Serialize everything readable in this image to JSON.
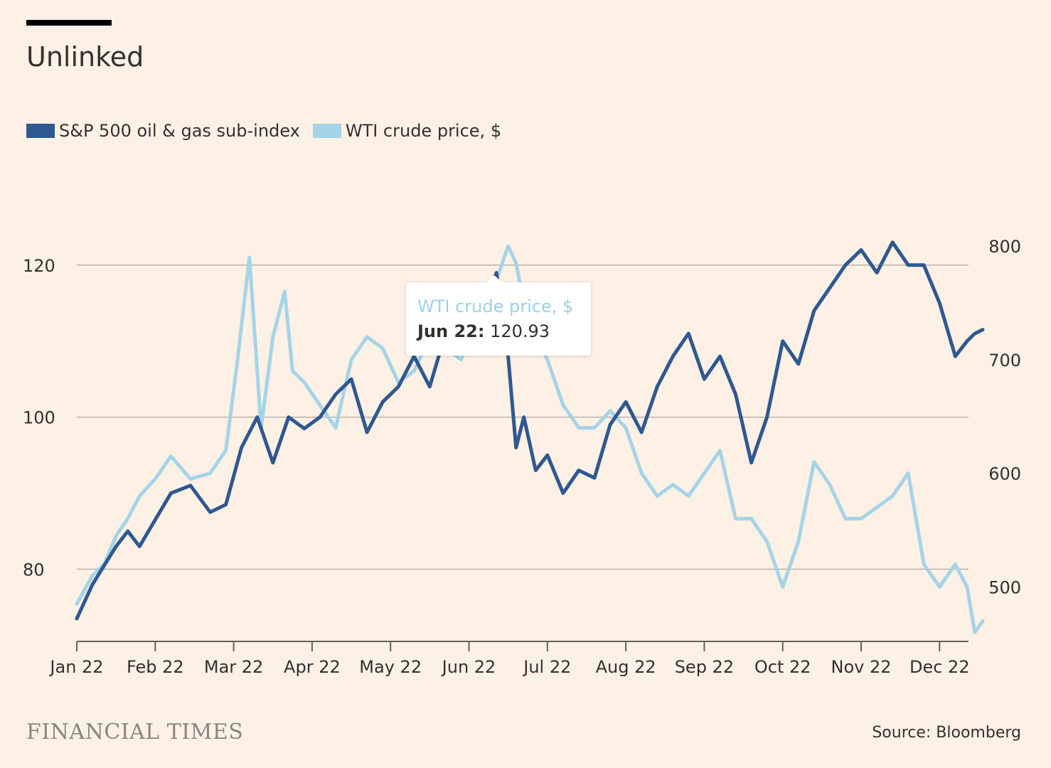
{
  "title": "Unlinked",
  "colors": {
    "background": "#fdf1e5",
    "series_dark": "#2f5891",
    "series_light": "#a5d4e8",
    "grid": "#b9b3ad",
    "text": "#33302e"
  },
  "tooltip": {
    "series": "WTI crude price, $",
    "date": "Jun 22:",
    "value": "120.93"
  },
  "footer": {
    "logo": "FINANCIAL TIMES",
    "source": "Source: Bloomberg"
  },
  "chart_data": {
    "type": "line",
    "x_labels": [
      "Jan 22",
      "Feb 22",
      "Mar 22",
      "Apr 22",
      "May 22",
      "Jun 22",
      "Jul 22",
      "Aug 22",
      "Sep 22",
      "Oct 22",
      "Nov 22",
      "Dec 22"
    ],
    "left_axis": {
      "ticks": [
        "80",
        "100",
        "120"
      ],
      "range": [
        70.5,
        124
      ]
    },
    "right_axis": {
      "ticks": [
        "500",
        "600",
        "700",
        "800"
      ],
      "range": [
        452,
        810
      ]
    },
    "grid": true,
    "legend_position": "top-left",
    "series": [
      {
        "name": "S&P 500 oil & gas sub-index",
        "axis": "left",
        "color": "#2f5891",
        "x": [
          0,
          0.2,
          0.35,
          0.5,
          0.65,
          0.8,
          1.0,
          1.2,
          1.45,
          1.7,
          1.9,
          2.1,
          2.3,
          2.5,
          2.7,
          2.9,
          3.1,
          3.3,
          3.5,
          3.7,
          3.9,
          4.1,
          4.3,
          4.5,
          4.7,
          4.9,
          5.05,
          5.2,
          5.35,
          5.5,
          5.6,
          5.7,
          5.85,
          6.0,
          6.2,
          6.4,
          6.6,
          6.8,
          7.0,
          7.2,
          7.4,
          7.6,
          7.8,
          8.0,
          8.2,
          8.4,
          8.6,
          8.8,
          9.0,
          9.2,
          9.4,
          9.6,
          9.8,
          10.0,
          10.2,
          10.4,
          10.6,
          10.8,
          11.0,
          11.2,
          11.35,
          11.45,
          11.55
        ],
        "values": [
          73.5,
          78,
          80.5,
          83,
          85,
          83,
          86.5,
          90,
          91,
          87.5,
          88.5,
          96,
          100,
          94,
          100,
          98.5,
          100,
          103,
          105,
          98,
          102,
          104,
          108,
          104,
          111,
          110,
          117,
          115,
          119,
          108,
          96,
          100,
          93,
          95,
          90,
          93,
          92,
          99,
          102,
          98,
          104,
          108,
          111,
          105,
          108,
          103,
          94,
          100,
          110,
          107,
          114,
          117,
          120,
          122,
          119,
          123,
          120,
          120,
          115,
          108,
          110,
          111,
          111.5
        ]
      },
      {
        "name": "WTI crude price, $",
        "axis": "right",
        "color": "#a5d4e8",
        "x": [
          0,
          0.2,
          0.35,
          0.5,
          0.65,
          0.8,
          1.0,
          1.2,
          1.45,
          1.7,
          1.9,
          2.05,
          2.2,
          2.35,
          2.5,
          2.65,
          2.75,
          2.9,
          3.1,
          3.3,
          3.5,
          3.7,
          3.9,
          4.1,
          4.3,
          4.5,
          4.7,
          4.9,
          5.05,
          5.2,
          5.35,
          5.5,
          5.6,
          5.7,
          5.85,
          6.0,
          6.2,
          6.4,
          6.6,
          6.8,
          7.0,
          7.2,
          7.4,
          7.6,
          7.8,
          8.0,
          8.2,
          8.4,
          8.6,
          8.8,
          9.0,
          9.2,
          9.4,
          9.6,
          9.8,
          10.0,
          10.2,
          10.4,
          10.6,
          10.8,
          11.0,
          11.2,
          11.35,
          11.45,
          11.55
        ],
        "values": [
          485,
          510,
          520,
          545,
          560,
          580,
          595,
          615,
          595,
          600,
          620,
          700,
          790,
          640,
          720,
          760,
          690,
          680,
          660,
          640,
          700,
          720,
          710,
          680,
          690,
          720,
          710,
          700,
          730,
          750,
          770,
          800,
          785,
          750,
          720,
          700,
          660,
          640,
          640,
          655,
          640,
          600,
          580,
          590,
          580,
          600,
          620,
          560,
          560,
          540,
          500,
          540,
          610,
          590,
          560,
          560,
          570,
          580,
          600,
          520,
          500,
          520,
          500,
          460,
          470
        ]
      }
    ]
  }
}
